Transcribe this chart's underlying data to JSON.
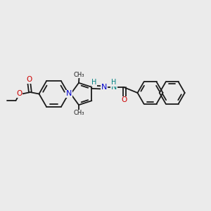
{
  "background_color": "#ebebeb",
  "bond_color": "#1a1a1a",
  "atom_colors": {
    "N_blue": "#0000cc",
    "N_teal": "#008080",
    "O": "#cc0000",
    "C": "#1a1a1a"
  },
  "figsize": [
    3.0,
    3.0
  ],
  "dpi": 100,
  "xlim": [
    0,
    10
  ],
  "ylim": [
    0,
    10
  ],
  "bond_lw": 1.3,
  "dbl_sep": 0.1,
  "font_size": 7.5
}
